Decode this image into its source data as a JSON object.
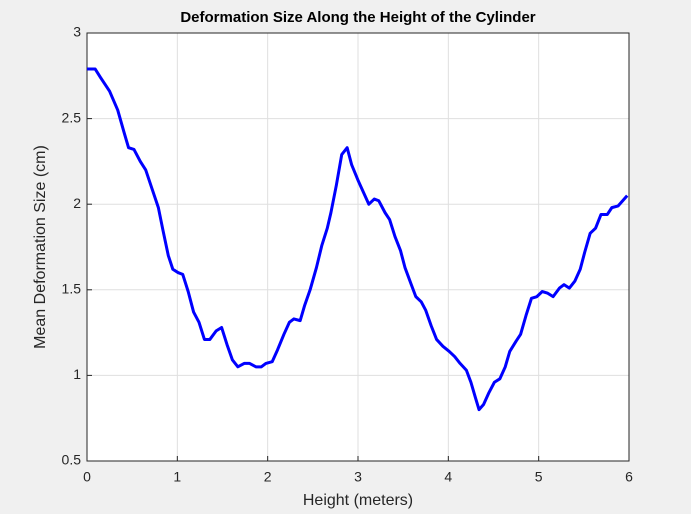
{
  "chart_data": {
    "type": "line",
    "title": "Deformation Size Along the Height of the Cylinder",
    "x_label": "Height (meters)",
    "y_label": "Mean Deformation Size (cm)",
    "xlim": [
      0,
      6
    ],
    "xticks": [
      0,
      1,
      2,
      3,
      4,
      5,
      6
    ],
    "ylim": [
      0.5,
      3
    ],
    "yticks": [
      0.5,
      1,
      1.5,
      2,
      2.5,
      3
    ],
    "grid": true,
    "series": [
      {
        "color": "#0000ff",
        "x": [
          0,
          0.09,
          0.15,
          0.25,
          0.34,
          0.41,
          0.46,
          0.52,
          0.59,
          0.65,
          0.72,
          0.79,
          0.84,
          0.9,
          0.95,
          1.01,
          1.06,
          1.12,
          1.18,
          1.24,
          1.3,
          1.36,
          1.43,
          1.49,
          1.55,
          1.61,
          1.67,
          1.74,
          1.8,
          1.87,
          1.93,
          1.98,
          2.05,
          2.11,
          2.18,
          2.24,
          2.29,
          2.36,
          2.41,
          2.47,
          2.54,
          2.6,
          2.66,
          2.7,
          2.76,
          2.82,
          2.88,
          2.93,
          3.0,
          3.06,
          3.12,
          3.18,
          3.23,
          3.3,
          3.35,
          3.41,
          3.47,
          3.52,
          3.59,
          3.64,
          3.7,
          3.75,
          3.81,
          3.87,
          3.94,
          4.01,
          4.07,
          4.13,
          4.2,
          4.25,
          4.3,
          4.34,
          4.39,
          4.45,
          4.51,
          4.57,
          4.63,
          4.68,
          4.75,
          4.8,
          4.86,
          4.92,
          4.98,
          5.04,
          5.1,
          5.16,
          5.23,
          5.28,
          5.34,
          5.4,
          5.46,
          5.51,
          5.57,
          5.63,
          5.69,
          5.76,
          5.81,
          5.88,
          5.93,
          5.98
        ],
        "values": [
          2.79,
          2.79,
          2.74,
          2.66,
          2.55,
          2.42,
          2.33,
          2.32,
          2.25,
          2.2,
          2.09,
          1.98,
          1.85,
          1.7,
          1.62,
          1.6,
          1.59,
          1.49,
          1.37,
          1.31,
          1.21,
          1.21,
          1.26,
          1.28,
          1.18,
          1.09,
          1.05,
          1.07,
          1.07,
          1.05,
          1.05,
          1.07,
          1.08,
          1.15,
          1.24,
          1.31,
          1.33,
          1.32,
          1.41,
          1.5,
          1.63,
          1.76,
          1.86,
          1.95,
          2.11,
          2.29,
          2.33,
          2.23,
          2.14,
          2.07,
          2.0,
          2.03,
          2.02,
          1.95,
          1.91,
          1.81,
          1.73,
          1.63,
          1.53,
          1.46,
          1.43,
          1.38,
          1.29,
          1.21,
          1.17,
          1.14,
          1.11,
          1.07,
          1.03,
          0.96,
          0.87,
          0.8,
          0.83,
          0.9,
          0.96,
          0.98,
          1.05,
          1.14,
          1.2,
          1.24,
          1.35,
          1.45,
          1.46,
          1.49,
          1.48,
          1.46,
          1.51,
          1.53,
          1.51,
          1.55,
          1.62,
          1.72,
          1.83,
          1.86,
          1.94,
          1.94,
          1.98,
          1.99,
          2.02,
          2.05
        ]
      }
    ]
  }
}
